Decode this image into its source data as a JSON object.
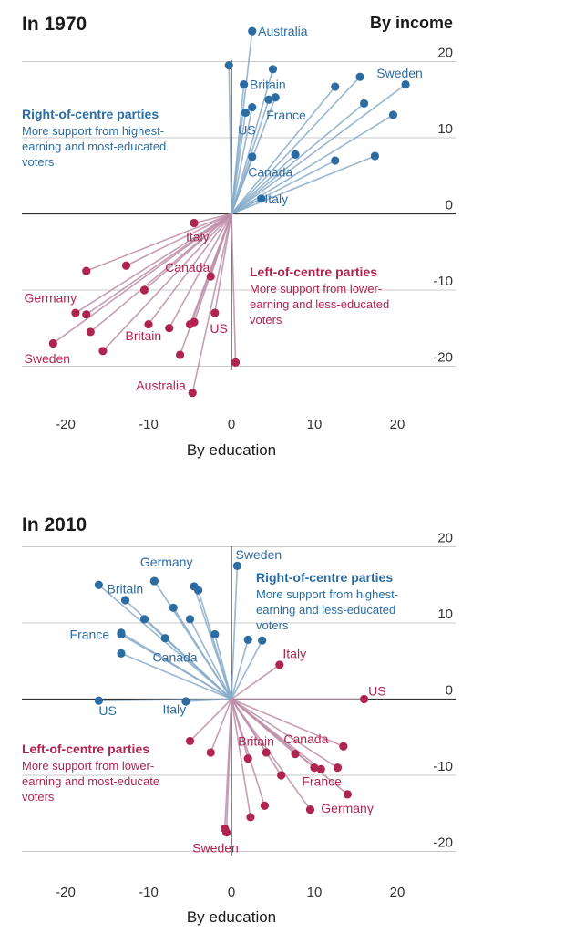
{
  "chart_data": [
    {
      "type": "scatter",
      "title": "In 1970",
      "xlabel": "By education",
      "ylabel": "By income",
      "xlim": [
        -25,
        25
      ],
      "ylim": [
        -25,
        24
      ],
      "xticks": [
        -20,
        -10,
        0,
        10,
        20
      ],
      "yticks": [
        20,
        10,
        0,
        -10,
        -20
      ],
      "grid": "horizontal",
      "annotations": [
        {
          "name": "right",
          "color": "#2b6ca3",
          "heading": "Right-of-centre parties",
          "lines": [
            "More support from highest-",
            "earning and most-educated",
            "voters"
          ]
        },
        {
          "name": "left",
          "color": "#b0254f",
          "heading": "Left-of-centre parties",
          "lines": [
            "More support from lower-",
            "earning and less-educated",
            "voters"
          ]
        }
      ],
      "series": [
        {
          "name": "Right-of-centre parties",
          "color": "#2b6ca3",
          "points": [
            [
              2.5,
              24
            ],
            [
              -0.3,
              19.5
            ],
            [
              5,
              19
            ],
            [
              1.5,
              17
            ],
            [
              12.5,
              16.7
            ],
            [
              15.5,
              18
            ],
            [
              21,
              17
            ],
            [
              4.5,
              15
            ],
            [
              5.3,
              15.3
            ],
            [
              2.5,
              14
            ],
            [
              1.7,
              13.3
            ],
            [
              16,
              14.5
            ],
            [
              19.5,
              13
            ],
            [
              2.5,
              7.5
            ],
            [
              7.7,
              7.8
            ],
            [
              12.5,
              7
            ],
            [
              17.3,
              7.6
            ],
            [
              3.6,
              2
            ]
          ]
        },
        {
          "name": "Left-of-centre parties",
          "color": "#b0254f",
          "points": [
            [
              -4.5,
              -1.2
            ],
            [
              -17.5,
              -7.5
            ],
            [
              -12.7,
              -6.8
            ],
            [
              -10.5,
              -10
            ],
            [
              -18.8,
              -13
            ],
            [
              -17.5,
              -13.2
            ],
            [
              -21.5,
              -17
            ],
            [
              -17,
              -15.5
            ],
            [
              -15.5,
              -18
            ],
            [
              -10,
              -14.5
            ],
            [
              -7.5,
              -15
            ],
            [
              -2.5,
              -8.2
            ],
            [
              -5,
              -14.5
            ],
            [
              -4.5,
              -14.2
            ],
            [
              -2,
              -13
            ],
            [
              -6.2,
              -18.5
            ],
            [
              0.5,
              -19.5
            ],
            [
              -4.7,
              -23.5
            ]
          ]
        }
      ],
      "labels": [
        {
          "text": "Australia",
          "color": "#2b6ca3",
          "x": 3.2,
          "y": 24
        },
        {
          "text": "Britain",
          "color": "#2b6ca3",
          "x": 2.2,
          "y": 17
        },
        {
          "text": "France",
          "color": "#2b6ca3",
          "x": 4.2,
          "y": 13
        },
        {
          "text": "US",
          "color": "#2b6ca3",
          "x": 0.8,
          "y": 11
        },
        {
          "text": "Sweden",
          "color": "#2b6ca3",
          "x": 17.5,
          "y": 18.5
        },
        {
          "text": "Canada",
          "color": "#2b6ca3",
          "x": 2,
          "y": 5.5
        },
        {
          "text": "Italy",
          "color": "#2b6ca3",
          "x": 4,
          "y": 2
        },
        {
          "text": "Italy",
          "color": "#b0254f",
          "x": -5.5,
          "y": -3
        },
        {
          "text": "Canada",
          "color": "#b0254f",
          "x": -8,
          "y": -7
        },
        {
          "text": "Germany",
          "color": "#b0254f",
          "x": -25,
          "y": -11
        },
        {
          "text": "Britain",
          "color": "#b0254f",
          "x": -12.8,
          "y": -16
        },
        {
          "text": "US",
          "color": "#b0254f",
          "x": -2.6,
          "y": -15
        },
        {
          "text": "Sweden",
          "color": "#b0254f",
          "x": -25,
          "y": -19
        },
        {
          "text": "Australia",
          "color": "#b0254f",
          "x": -11.5,
          "y": -22.5
        }
      ]
    },
    {
      "type": "scatter",
      "title": "In 2010",
      "xlabel": "By education",
      "ylabel": "",
      "xlim": [
        -25,
        25
      ],
      "ylim": [
        -25,
        22
      ],
      "xticks": [
        -20,
        -10,
        0,
        10,
        20
      ],
      "yticks": [
        20,
        10,
        0,
        -10,
        -20
      ],
      "grid": "horizontal",
      "annotations": [
        {
          "name": "right",
          "color": "#2b6ca3",
          "heading": "Right-of-centre parties",
          "lines": [
            "More support from highest-",
            "earning and less-educated",
            "voters"
          ]
        },
        {
          "name": "left",
          "color": "#b0254f",
          "heading": "Left-of-centre parties",
          "lines": [
            "More support from lower-",
            "earning and most-educate",
            "voters"
          ]
        }
      ],
      "series": [
        {
          "name": "Right-of-centre parties",
          "color": "#2b6ca3",
          "points": [
            [
              0.7,
              17.5
            ],
            [
              -16,
              15
            ],
            [
              -9.3,
              15.5
            ],
            [
              -4.5,
              14.8
            ],
            [
              -4,
              14.3
            ],
            [
              -12.8,
              13
            ],
            [
              -7,
              12
            ],
            [
              -10.5,
              10.5
            ],
            [
              -5,
              10.5
            ],
            [
              -13.3,
              8.7
            ],
            [
              -13.3,
              8.5
            ],
            [
              -8,
              8
            ],
            [
              -2,
              8.5
            ],
            [
              -13.3,
              6
            ],
            [
              2,
              7.8
            ],
            [
              3.7,
              7.7
            ],
            [
              -16,
              -0.2
            ],
            [
              -5.5,
              -0.3
            ]
          ]
        },
        {
          "name": "Left-of-centre parties",
          "color": "#b0254f",
          "points": [
            [
              5.8,
              4.5
            ],
            [
              16,
              0
            ],
            [
              -5,
              -5.5
            ],
            [
              -2.5,
              -7
            ],
            [
              2,
              -7.8
            ],
            [
              4.2,
              -7
            ],
            [
              7.7,
              -7.2
            ],
            [
              10,
              -9
            ],
            [
              10.8,
              -9.2
            ],
            [
              12.8,
              -9
            ],
            [
              13.5,
              -6.2
            ],
            [
              6,
              -10
            ],
            [
              14,
              -12.5
            ],
            [
              9.5,
              -14.5
            ],
            [
              4,
              -14
            ],
            [
              2.3,
              -15.5
            ],
            [
              -0.8,
              -17
            ],
            [
              -0.6,
              -17.5
            ]
          ]
        }
      ],
      "labels": [
        {
          "text": "Sweden",
          "color": "#2b6ca3",
          "x": 0.5,
          "y": 19
        },
        {
          "text": "Germany",
          "color": "#2b6ca3",
          "x": -11,
          "y": 18
        },
        {
          "text": "Britain",
          "color": "#2b6ca3",
          "x": -15,
          "y": 14.5
        },
        {
          "text": "France",
          "color": "#2b6ca3",
          "x": -19.5,
          "y": 8.5
        },
        {
          "text": "Canada",
          "color": "#2b6ca3",
          "x": -9.5,
          "y": 5.5
        },
        {
          "text": "US",
          "color": "#2b6ca3",
          "x": -16,
          "y": -1.5
        },
        {
          "text": "Italy",
          "color": "#2b6ca3",
          "x": -8.3,
          "y": -1.3
        },
        {
          "text": "Italy",
          "color": "#b0254f",
          "x": 6.2,
          "y": 6
        },
        {
          "text": "US",
          "color": "#b0254f",
          "x": 16.5,
          "y": 1.1
        },
        {
          "text": "Britain",
          "color": "#b0254f",
          "x": 0.8,
          "y": -5.5
        },
        {
          "text": "Canada",
          "color": "#b0254f",
          "x": 6.3,
          "y": -5.2
        },
        {
          "text": "France",
          "color": "#b0254f",
          "x": 8.5,
          "y": -10.8
        },
        {
          "text": "Germany",
          "color": "#b0254f",
          "x": 10.8,
          "y": -14.3
        },
        {
          "text": "Sweden",
          "color": "#b0254f",
          "x": -4.7,
          "y": -19.5
        }
      ]
    }
  ]
}
